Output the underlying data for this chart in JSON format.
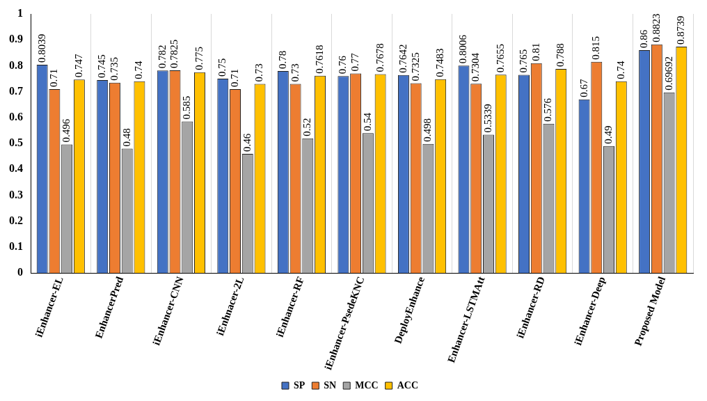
{
  "chart_data": {
    "type": "bar",
    "categories": [
      "iEnhancer-EL",
      "EnhancerPred",
      "iEnhancer-CNN",
      "iEnhnacer-2L",
      "iEnhancer-RF",
      "iEnhancer-PsedeKNC",
      "DeployEnhance",
      "Enhancer-LSTMAtt",
      "iEnhancer-RD",
      "iEnhancer-Deep",
      "Proposed Model"
    ],
    "series": [
      {
        "name": "SP",
        "color": "#4472c4",
        "values": [
          0.8039,
          0.745,
          0.782,
          0.75,
          0.78,
          0.76,
          0.7642,
          0.8006,
          0.765,
          0.67,
          0.86
        ]
      },
      {
        "name": "SN",
        "color": "#ed7d31",
        "values": [
          0.71,
          0.735,
          0.7825,
          0.71,
          0.73,
          0.77,
          0.7325,
          0.7304,
          0.81,
          0.815,
          0.8823
        ]
      },
      {
        "name": "MCC",
        "color": "#a5a5a5",
        "values": [
          0.496,
          0.48,
          0.585,
          0.46,
          0.52,
          0.54,
          0.498,
          0.5339,
          0.576,
          0.49,
          0.69692
        ]
      },
      {
        "name": "ACC",
        "color": "#ffc000",
        "values": [
          0.747,
          0.74,
          0.775,
          0.73,
          0.7618,
          0.7678,
          0.7483,
          0.7655,
          0.788,
          0.74,
          0.8739
        ]
      }
    ],
    "ylim": [
      0,
      1
    ],
    "yticks": [
      0,
      0.1,
      0.2,
      0.3,
      0.4,
      0.5,
      0.6,
      0.7,
      0.8,
      0.9,
      1
    ],
    "grid": "x",
    "legend": "bottom",
    "data_labels": true
  }
}
